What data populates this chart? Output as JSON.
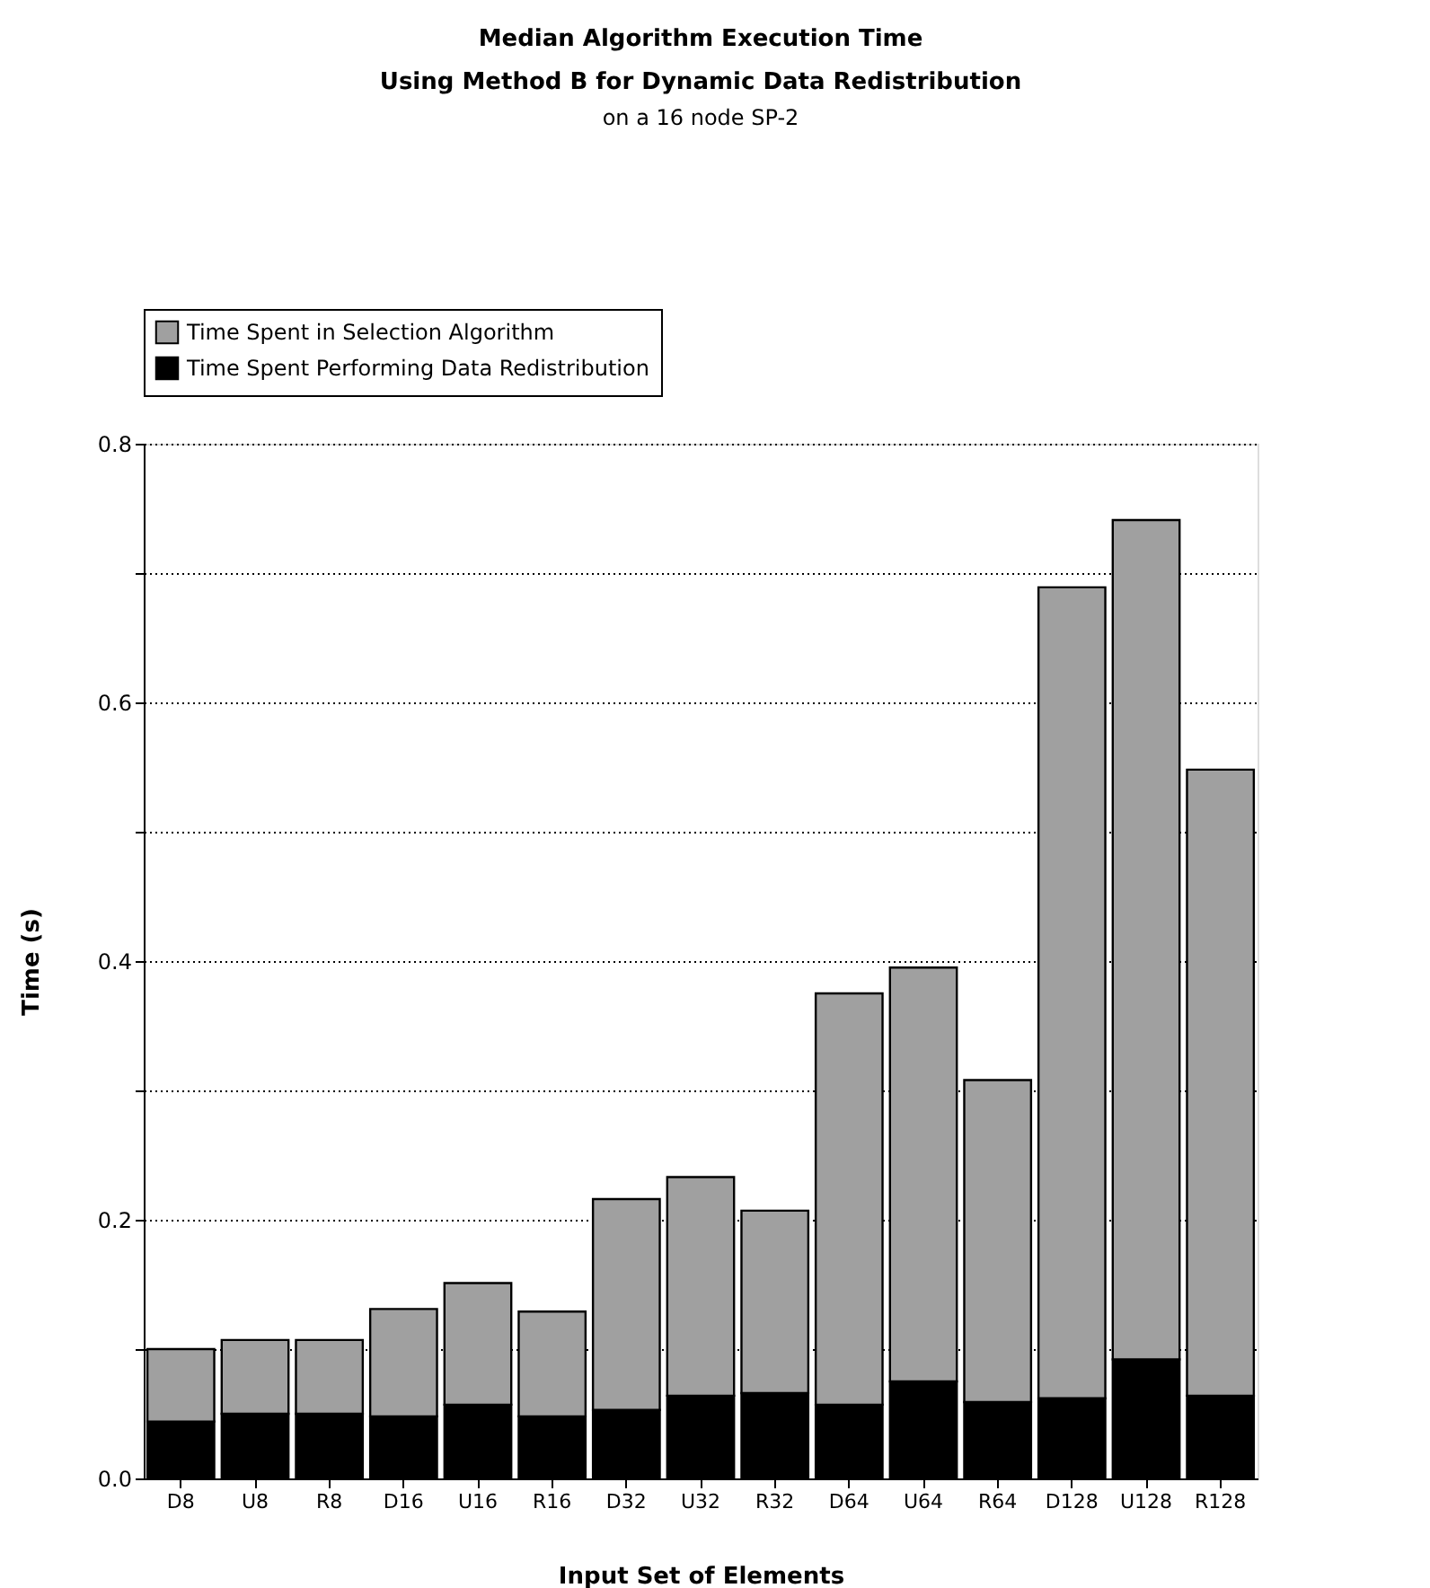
{
  "chart_data": {
    "type": "bar",
    "title": "Median Algorithm Execution Time\nUsing Method B for Dynamic Data Redistribution",
    "subtitle": "on a 16 node SP-2",
    "xlabel": "Input Set of Elements",
    "ylabel": "Time (s)",
    "categories": [
      "D8",
      "U8",
      "R8",
      "D16",
      "U16",
      "R16",
      "D32",
      "U32",
      "R32",
      "D64",
      "U64",
      "R64",
      "D128",
      "U128",
      "R128"
    ],
    "stacked": true,
    "series": [
      {
        "name": "Time Spent Performing Data Redistribution",
        "color": "#000000",
        "values": [
          0.044,
          0.05,
          0.05,
          0.048,
          0.057,
          0.048,
          0.053,
          0.064,
          0.066,
          0.057,
          0.075,
          0.059,
          0.062,
          0.092,
          0.064
        ]
      },
      {
        "name": "Time Spent in Selection Algorithm",
        "color": "#a0a0a0",
        "values": [
          0.056,
          0.057,
          0.057,
          0.083,
          0.094,
          0.081,
          0.163,
          0.169,
          0.141,
          0.318,
          0.32,
          0.249,
          0.627,
          0.649,
          0.484
        ]
      }
    ],
    "ylim": [
      0,
      0.8
    ],
    "yticks": [
      {
        "value": 0,
        "label": "0.0"
      },
      {
        "value": 0.1,
        "label": null
      },
      {
        "value": 0.2,
        "label": "0.2"
      },
      {
        "value": 0.3,
        "label": null
      },
      {
        "value": 0.4,
        "label": "0.4"
      },
      {
        "value": 0.5,
        "label": null
      },
      {
        "value": 0.6,
        "label": "0.6"
      },
      {
        "value": 0.7,
        "label": null
      },
      {
        "value": 0.8,
        "label": "0.8"
      }
    ],
    "grid": "y",
    "legend": "top left"
  }
}
